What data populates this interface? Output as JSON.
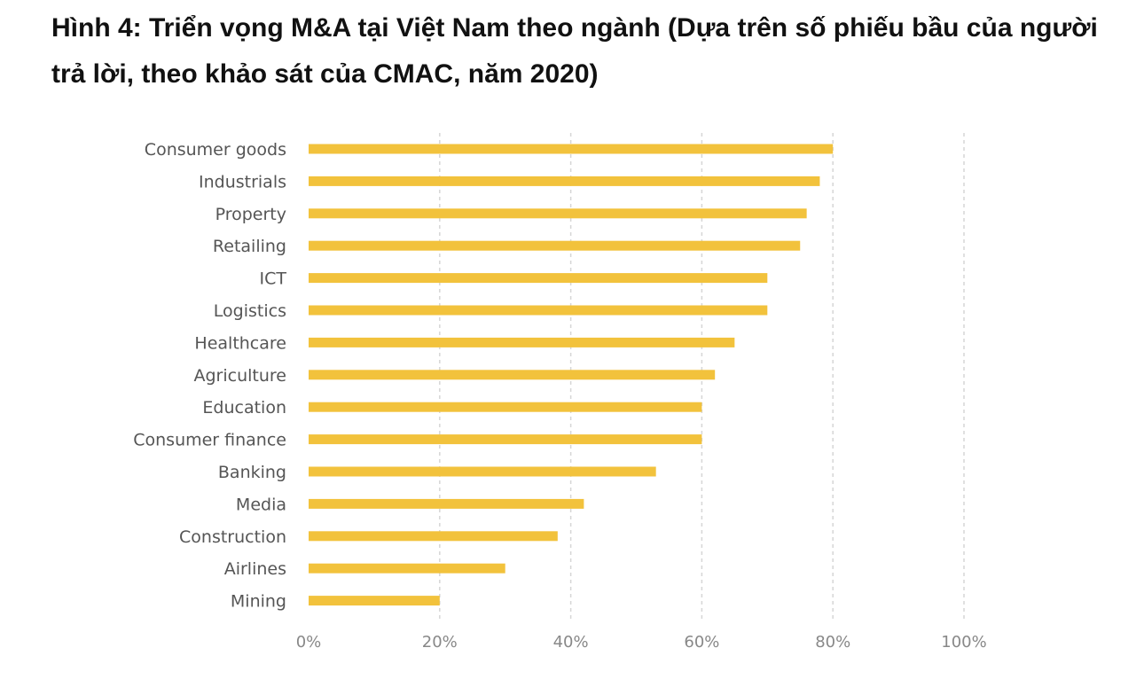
{
  "figure": {
    "title": "Hình 4: Triển vọng M&A tại Việt Nam theo ngành (Dựa trên số phiếu bầu của người trả lời, theo khảo sát của CMAC, năm 2020)"
  },
  "chart_data": {
    "type": "bar",
    "orientation": "horizontal",
    "categories": [
      "Consumer goods",
      "Industrials",
      "Property",
      "Retailing",
      "ICT",
      "Logistics",
      "Healthcare",
      "Agriculture",
      "Education",
      "Consumer finance",
      "Banking",
      "Media",
      "Construction",
      "Airlines",
      "Mining"
    ],
    "values": [
      80,
      78,
      76,
      75,
      70,
      70,
      65,
      62,
      60,
      60,
      53,
      42,
      38,
      30,
      20
    ],
    "unit": "%",
    "xlim": [
      0,
      100
    ],
    "xticks": [
      0,
      20,
      40,
      60,
      80,
      100
    ],
    "xtick_labels": [
      "0%",
      "20%",
      "40%",
      "60%",
      "80%",
      "100%"
    ],
    "grid": "vertical dashed",
    "legend": "none",
    "bar_color": "#F2C23C",
    "grid_color": "#D6D6D6"
  }
}
